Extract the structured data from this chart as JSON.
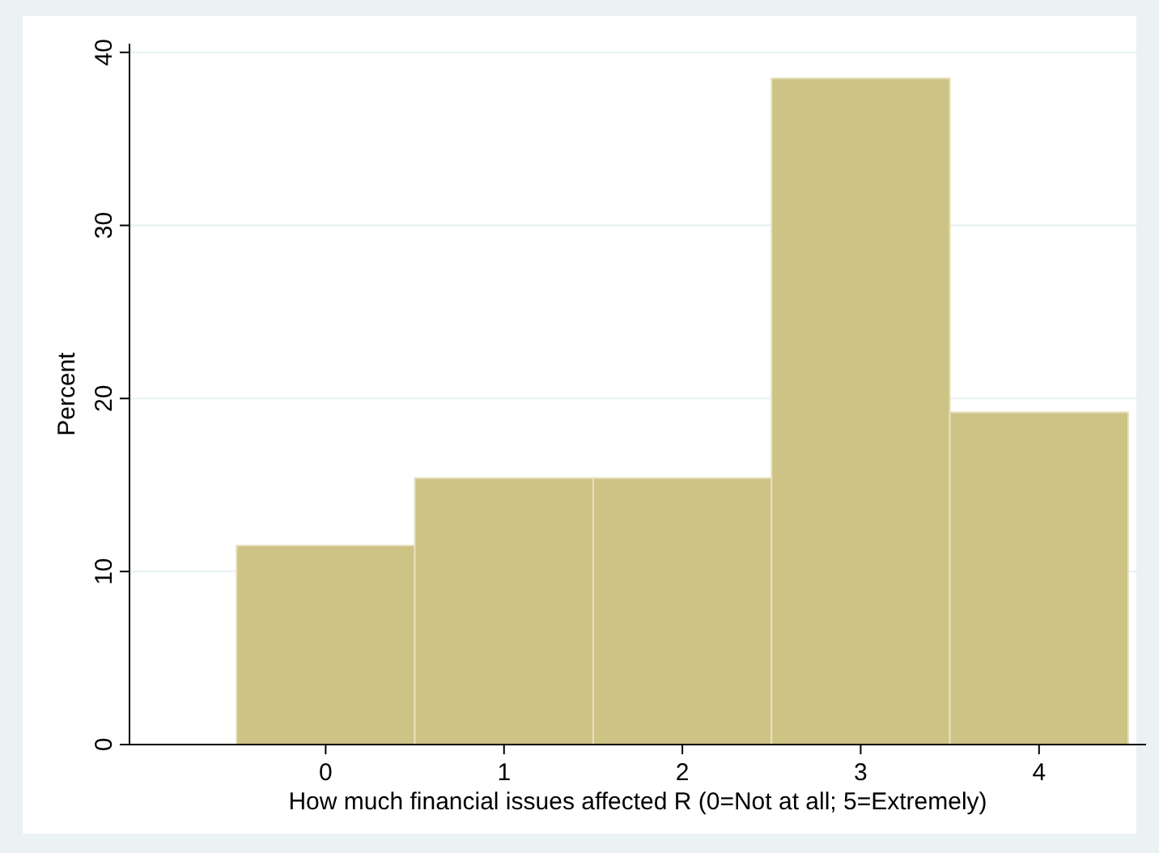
{
  "chart_data": {
    "type": "histogram",
    "xlabel": "How much financial issues affected R (0=Not at all; 5=Extremely)",
    "ylabel": "Percent",
    "bins": [
      -0.5,
      0.5,
      1.5,
      2.5,
      3.5,
      4.5
    ],
    "values": [
      11.5,
      15.4,
      15.4,
      38.5,
      19.2
    ],
    "color": "#cdc384",
    "xlim": [
      -1.1,
      4.6
    ],
    "xticks": [
      0,
      1,
      2,
      3,
      4
    ],
    "ylim": [
      0,
      40.5
    ],
    "yticks": [
      0,
      10,
      20,
      30,
      40
    ],
    "grid": "y"
  }
}
